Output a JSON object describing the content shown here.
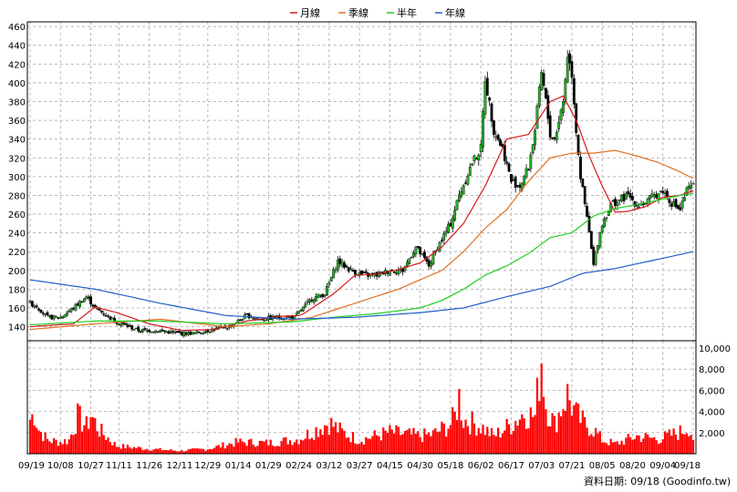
{
  "legend": {
    "items": [
      {
        "label": "月線",
        "color": "#d41a1a"
      },
      {
        "label": "季線",
        "color": "#e07020"
      },
      {
        "label": "半年",
        "color": "#22cc22"
      },
      {
        "label": "年線",
        "color": "#1f5fc8"
      }
    ]
  },
  "credit": "資料日期: 09/18 (Goodinfo.tw)",
  "chart_data": [
    {
      "type": "candlestick",
      "title": "",
      "ylim": [
        125,
        465
      ],
      "y_ticks": [
        140,
        160,
        180,
        200,
        220,
        240,
        260,
        280,
        300,
        320,
        340,
        360,
        380,
        400,
        420,
        440,
        460
      ],
      "x_tick_labels": [
        "09/19",
        "10/08",
        "10/27",
        "11/11",
        "11/26",
        "12/11",
        "12/29",
        "01/14",
        "01/29",
        "02/24",
        "03/12",
        "03/27",
        "04/15",
        "04/30",
        "05/18",
        "06/02",
        "06/17",
        "07/03",
        "07/21",
        "08/05",
        "08/20",
        "09/04",
        "09/18"
      ],
      "x_tick_index": [
        0,
        14,
        28,
        41,
        55,
        69,
        82,
        96,
        110,
        124,
        138,
        152,
        166,
        180,
        194,
        208,
        222,
        236,
        250,
        264,
        278,
        292,
        306
      ],
      "up_color": "#22b522",
      "down_color": "#000000",
      "close_anchors": [
        [
          0,
          165
        ],
        [
          3,
          162
        ],
        [
          8,
          150
        ],
        [
          14,
          150
        ],
        [
          20,
          160
        ],
        [
          26,
          172
        ],
        [
          30,
          160
        ],
        [
          40,
          145
        ],
        [
          50,
          136
        ],
        [
          58,
          136
        ],
        [
          68,
          133
        ],
        [
          76,
          133
        ],
        [
          84,
          137
        ],
        [
          92,
          140
        ],
        [
          100,
          152
        ],
        [
          106,
          148
        ],
        [
          114,
          150
        ],
        [
          122,
          150
        ],
        [
          130,
          170
        ],
        [
          136,
          175
        ],
        [
          142,
          210
        ],
        [
          148,
          200
        ],
        [
          154,
          195
        ],
        [
          160,
          195
        ],
        [
          166,
          200
        ],
        [
          172,
          200
        ],
        [
          178,
          225
        ],
        [
          184,
          205
        ],
        [
          188,
          225
        ],
        [
          194,
          250
        ],
        [
          198,
          280
        ],
        [
          204,
          315
        ],
        [
          208,
          330
        ],
        [
          210,
          405
        ],
        [
          214,
          350
        ],
        [
          218,
          330
        ],
        [
          222,
          295
        ],
        [
          226,
          290
        ],
        [
          230,
          310
        ],
        [
          233,
          350
        ],
        [
          236,
          410
        ],
        [
          238,
          380
        ],
        [
          240,
          345
        ],
        [
          242,
          340
        ],
        [
          244,
          360
        ],
        [
          246,
          380
        ],
        [
          248,
          430
        ],
        [
          250,
          410
        ],
        [
          252,
          350
        ],
        [
          254,
          300
        ],
        [
          256,
          270
        ],
        [
          258,
          240
        ],
        [
          260,
          205
        ],
        [
          262,
          230
        ],
        [
          264,
          250
        ],
        [
          268,
          270
        ],
        [
          272,
          275
        ],
        [
          276,
          280
        ],
        [
          280,
          270
        ],
        [
          284,
          272
        ],
        [
          288,
          280
        ],
        [
          292,
          285
        ],
        [
          296,
          272
        ],
        [
          300,
          265
        ],
        [
          303,
          285
        ],
        [
          306,
          290
        ]
      ],
      "ma": {
        "月線": [
          [
            0,
            140
          ],
          [
            20,
            143
          ],
          [
            30,
            161
          ],
          [
            40,
            155
          ],
          [
            55,
            143
          ],
          [
            70,
            136
          ],
          [
            85,
            137
          ],
          [
            100,
            146
          ],
          [
            115,
            151
          ],
          [
            125,
            152
          ],
          [
            140,
            175
          ],
          [
            150,
            195
          ],
          [
            160,
            196
          ],
          [
            170,
            201
          ],
          [
            180,
            208
          ],
          [
            190,
            225
          ],
          [
            200,
            250
          ],
          [
            210,
            290
          ],
          [
            220,
            340
          ],
          [
            230,
            345
          ],
          [
            240,
            380
          ],
          [
            246,
            386
          ],
          [
            252,
            360
          ],
          [
            258,
            322
          ],
          [
            264,
            290
          ],
          [
            270,
            262
          ],
          [
            276,
            263
          ],
          [
            284,
            268
          ],
          [
            292,
            278
          ],
          [
            300,
            280
          ],
          [
            306,
            285
          ]
        ],
        "季線": [
          [
            0,
            137
          ],
          [
            30,
            143
          ],
          [
            60,
            148
          ],
          [
            90,
            140
          ],
          [
            110,
            143
          ],
          [
            130,
            150
          ],
          [
            150,
            165
          ],
          [
            170,
            180
          ],
          [
            190,
            200
          ],
          [
            200,
            220
          ],
          [
            210,
            245
          ],
          [
            220,
            265
          ],
          [
            230,
            295
          ],
          [
            240,
            320
          ],
          [
            250,
            325
          ],
          [
            260,
            325
          ],
          [
            270,
            328
          ],
          [
            280,
            322
          ],
          [
            290,
            315
          ],
          [
            300,
            305
          ],
          [
            306,
            298
          ]
        ],
        "半年": [
          [
            0,
            142
          ],
          [
            30,
            146
          ],
          [
            60,
            146
          ],
          [
            90,
            143
          ],
          [
            120,
            145
          ],
          [
            140,
            150
          ],
          [
            160,
            154
          ],
          [
            180,
            160
          ],
          [
            190,
            168
          ],
          [
            200,
            180
          ],
          [
            210,
            195
          ],
          [
            220,
            205
          ],
          [
            230,
            218
          ],
          [
            240,
            235
          ],
          [
            250,
            240
          ],
          [
            260,
            258
          ],
          [
            270,
            266
          ],
          [
            280,
            270
          ],
          [
            290,
            275
          ],
          [
            300,
            280
          ],
          [
            306,
            282
          ]
        ],
        "年線": [
          [
            0,
            190
          ],
          [
            30,
            180
          ],
          [
            60,
            165
          ],
          [
            90,
            152
          ],
          [
            120,
            148
          ],
          [
            150,
            150
          ],
          [
            180,
            155
          ],
          [
            200,
            160
          ],
          [
            220,
            172
          ],
          [
            240,
            183
          ],
          [
            255,
            197
          ],
          [
            270,
            202
          ],
          [
            290,
            212
          ],
          [
            306,
            220
          ]
        ]
      }
    },
    {
      "type": "bar",
      "title": "",
      "ylim": [
        0,
        10000
      ],
      "y_ticks": [
        2000,
        4000,
        6000,
        8000,
        10000
      ],
      "y_tick_labels": [
        "2,000",
        "4,000",
        "6,000",
        "8,000",
        "10,000"
      ],
      "bar_color": "#ff0000",
      "volume_anchors": [
        [
          0,
          3500
        ],
        [
          2,
          4200
        ],
        [
          4,
          2500
        ],
        [
          8,
          1400
        ],
        [
          14,
          1200
        ],
        [
          18,
          1400
        ],
        [
          22,
          3800
        ],
        [
          26,
          2800
        ],
        [
          28,
          4000
        ],
        [
          32,
          2400
        ],
        [
          40,
          800
        ],
        [
          55,
          500
        ],
        [
          69,
          300
        ],
        [
          82,
          500
        ],
        [
          96,
          1200
        ],
        [
          110,
          1100
        ],
        [
          124,
          1500
        ],
        [
          138,
          3200
        ],
        [
          144,
          2200
        ],
        [
          152,
          1400
        ],
        [
          166,
          2200
        ],
        [
          180,
          1800
        ],
        [
          186,
          2000
        ],
        [
          194,
          3000
        ],
        [
          196,
          3800
        ],
        [
          198,
          5800
        ],
        [
          200,
          3500
        ],
        [
          208,
          2800
        ],
        [
          214,
          1800
        ],
        [
          222,
          3000
        ],
        [
          228,
          4200
        ],
        [
          233,
          3800
        ],
        [
          236,
          10000
        ],
        [
          238,
          5000
        ],
        [
          242,
          3000
        ],
        [
          246,
          5200
        ],
        [
          248,
          6000
        ],
        [
          252,
          4000
        ],
        [
          256,
          3000
        ],
        [
          260,
          2500
        ],
        [
          264,
          1400
        ],
        [
          270,
          1000
        ],
        [
          280,
          1800
        ],
        [
          290,
          1500
        ],
        [
          300,
          2200
        ],
        [
          304,
          2800
        ],
        [
          306,
          1600
        ]
      ]
    }
  ]
}
